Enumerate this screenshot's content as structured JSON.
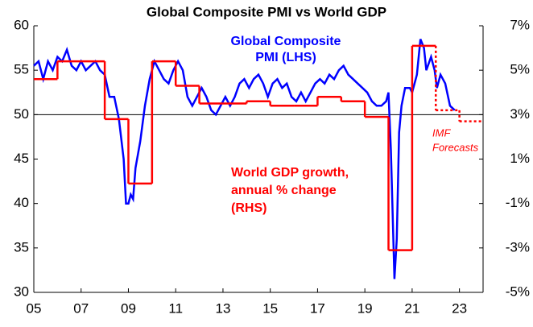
{
  "chart_data": {
    "type": "line",
    "title": "Global Composite PMI vs World GDP",
    "xlim": [
      2005,
      2024
    ],
    "xticks": [
      {
        "value": 2005,
        "label": "05"
      },
      {
        "value": 2007,
        "label": "07"
      },
      {
        "value": 2009,
        "label": "09"
      },
      {
        "value": 2011,
        "label": "11"
      },
      {
        "value": 2013,
        "label": "13"
      },
      {
        "value": 2015,
        "label": "15"
      },
      {
        "value": 2017,
        "label": "17"
      },
      {
        "value": 2019,
        "label": "19"
      },
      {
        "value": 2021,
        "label": "21"
      },
      {
        "value": 2023,
        "label": "23"
      }
    ],
    "ylim": [
      30,
      60
    ],
    "yticks": [
      30,
      35,
      40,
      45,
      50,
      55,
      60
    ],
    "y2lim": [
      -5,
      7
    ],
    "y2ticks": [
      {
        "value": -5,
        "label": "-5%"
      },
      {
        "value": -3,
        "label": "-3%"
      },
      {
        "value": -1,
        "label": "-1%"
      },
      {
        "value": 1,
        "label": "1%"
      },
      {
        "value": 3,
        "label": "3%"
      },
      {
        "value": 5,
        "label": "5%"
      },
      {
        "value": 7,
        "label": "7%"
      }
    ],
    "hline": 50,
    "series": [
      {
        "label_lines": [
          "Global Composite",
          "PMI (LHS)"
        ],
        "color": "#0000ff",
        "style": "line",
        "x": [
          2005.0,
          2005.2,
          2005.4,
          2005.6,
          2005.8,
          2006.0,
          2006.2,
          2006.4,
          2006.6,
          2006.8,
          2007.0,
          2007.2,
          2007.4,
          2007.6,
          2007.8,
          2008.0,
          2008.2,
          2008.4,
          2008.6,
          2008.8,
          2008.9,
          2009.0,
          2009.1,
          2009.2,
          2009.3,
          2009.5,
          2009.7,
          2009.9,
          2010.1,
          2010.3,
          2010.5,
          2010.7,
          2010.9,
          2011.1,
          2011.3,
          2011.5,
          2011.7,
          2011.9,
          2012.1,
          2012.3,
          2012.5,
          2012.7,
          2012.9,
          2013.1,
          2013.3,
          2013.5,
          2013.7,
          2013.9,
          2014.1,
          2014.3,
          2014.5,
          2014.7,
          2014.9,
          2015.1,
          2015.3,
          2015.5,
          2015.7,
          2015.9,
          2016.1,
          2016.3,
          2016.5,
          2016.7,
          2016.9,
          2017.1,
          2017.3,
          2017.5,
          2017.7,
          2017.9,
          2018.1,
          2018.3,
          2018.5,
          2018.7,
          2018.9,
          2019.1,
          2019.3,
          2019.5,
          2019.7,
          2019.9,
          2020.0,
          2020.1,
          2020.25,
          2020.35,
          2020.45,
          2020.55,
          2020.7,
          2020.9,
          2021.0,
          2021.2,
          2021.35,
          2021.5,
          2021.6,
          2021.8,
          2021.95,
          2022.05,
          2022.2,
          2022.4,
          2022.6,
          2022.8
        ],
        "values": [
          55.5,
          56,
          54,
          56,
          55,
          56.5,
          56,
          57.3,
          55.5,
          55,
          56,
          55,
          55.5,
          56,
          55,
          54.5,
          52,
          52,
          49.5,
          45,
          40,
          40,
          41,
          40.5,
          44,
          47,
          51,
          54,
          56,
          55,
          54,
          53.5,
          55,
          56,
          55,
          52,
          51,
          52,
          53,
          52,
          50.5,
          50,
          51,
          52,
          51,
          52,
          53.5,
          54,
          53,
          54,
          54.5,
          53.5,
          52,
          53.5,
          54,
          53,
          53.5,
          52,
          51.5,
          52.5,
          51.5,
          52.5,
          53.5,
          54,
          53.5,
          54.5,
          54,
          55,
          55.5,
          54.5,
          54,
          53.5,
          53,
          52.5,
          51.5,
          51,
          51,
          51.5,
          52.5,
          46,
          31.5,
          36,
          48,
          51,
          53,
          53,
          52.5,
          54.5,
          58.5,
          57.5,
          55,
          56.5,
          55,
          53,
          54.5,
          53.5,
          51,
          50.5
        ]
      },
      {
        "label_lines": [
          "World GDP growth,",
          "annual % change",
          "(RHS)"
        ],
        "color": "#ff0000",
        "style": "step",
        "axis": "y2",
        "x": [
          2005,
          2006,
          2007,
          2008,
          2009,
          2010,
          2011,
          2012,
          2013,
          2014,
          2015,
          2016,
          2017,
          2018,
          2019,
          2020,
          2021
        ],
        "values": [
          4.6,
          5.4,
          5.4,
          2.8,
          -0.1,
          5.4,
          4.3,
          3.5,
          3.5,
          3.6,
          3.4,
          3.4,
          3.8,
          3.6,
          2.9,
          -3.1,
          6.1
        ]
      },
      {
        "label_lines": [
          "IMF",
          "Forecasts"
        ],
        "color": "#ff0000",
        "style": "step",
        "dash": true,
        "axis": "y2",
        "x": [
          2022,
          2023
        ],
        "values": [
          3.2,
          2.7
        ]
      }
    ]
  }
}
